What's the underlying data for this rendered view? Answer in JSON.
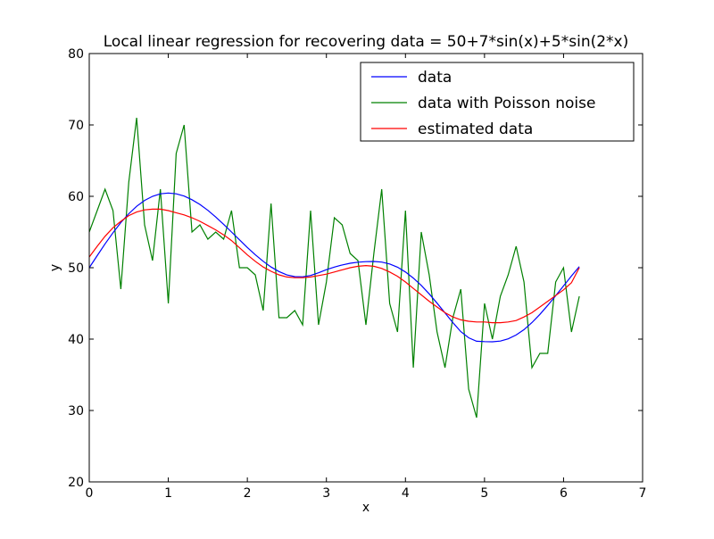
{
  "chart_data": {
    "type": "line",
    "title": "Local linear regression for recovering data = 50+7*sin(x)+5*sin(2*x)",
    "xlabel": "x",
    "ylabel": "y",
    "xlim": [
      0,
      7
    ],
    "ylim": [
      20,
      80
    ],
    "xticks": [
      "0",
      "1",
      "2",
      "3",
      "4",
      "5",
      "6",
      "7"
    ],
    "yticks": [
      "20",
      "30",
      "40",
      "50",
      "60",
      "70",
      "80"
    ],
    "grid": false,
    "legend_position": "upper-right",
    "x": [
      0.0,
      0.1,
      0.2,
      0.3,
      0.4,
      0.5,
      0.6,
      0.7,
      0.8,
      0.9,
      1.0,
      1.1,
      1.2,
      1.3,
      1.4,
      1.5,
      1.6,
      1.7,
      1.8,
      1.9,
      2.0,
      2.1,
      2.2,
      2.3,
      2.4,
      2.5,
      2.6,
      2.7,
      2.8,
      2.9,
      3.0,
      3.1,
      3.2,
      3.3,
      3.4,
      3.5,
      3.6,
      3.7,
      3.8,
      3.9,
      4.0,
      4.1,
      4.2,
      4.3,
      4.4,
      4.5,
      4.6,
      4.7,
      4.8,
      4.9,
      5.0,
      5.1,
      5.2,
      5.3,
      5.4,
      5.5,
      5.6,
      5.7,
      5.8,
      5.9,
      6.0,
      6.1,
      6.2
    ],
    "series": [
      {
        "name": "data",
        "color": "#0000ff",
        "values": [
          50.0,
          51.69,
          53.34,
          54.9,
          56.33,
          57.56,
          58.6,
          59.43,
          60.0,
          60.35,
          60.46,
          60.35,
          60.04,
          59.53,
          58.86,
          58.04,
          57.1,
          56.08,
          55.0,
          53.91,
          52.84,
          51.82,
          50.9,
          50.1,
          49.46,
          48.99,
          48.75,
          48.72,
          48.91,
          49.29,
          49.73,
          50.09,
          50.39,
          50.62,
          50.77,
          50.85,
          50.88,
          50.79,
          50.52,
          50.07,
          49.4,
          48.55,
          47.52,
          46.34,
          45.04,
          43.68,
          42.31,
          41.05,
          40.19,
          39.7,
          39.65,
          39.62,
          39.73,
          40.04,
          40.57,
          41.33,
          42.31,
          43.46,
          44.73,
          46.08,
          47.45,
          48.84,
          50.16
        ]
      },
      {
        "name": "data with Poisson noise",
        "color": "#008000",
        "values": [
          55,
          58,
          61,
          58,
          47,
          62,
          71,
          56,
          51,
          61,
          45,
          66,
          70,
          55,
          56,
          54,
          55,
          54,
          58,
          50,
          50,
          49,
          44,
          59,
          43,
          43,
          44,
          42,
          58,
          42,
          48,
          57,
          56,
          52,
          51,
          42,
          52,
          61,
          45,
          41,
          58,
          36,
          55,
          49,
          41,
          36,
          43,
          47,
          33,
          29,
          45,
          40,
          46,
          49,
          53,
          48,
          36,
          38,
          38,
          48,
          50,
          41,
          46
        ]
      },
      {
        "name": "estimated data",
        "color": "#ff0000",
        "values": [
          51.5,
          53.0,
          54.4,
          55.6,
          56.5,
          57.3,
          57.8,
          58.1,
          58.2,
          58.2,
          58.0,
          57.7,
          57.4,
          57.0,
          56.5,
          55.9,
          55.3,
          54.6,
          53.8,
          52.8,
          51.8,
          50.9,
          50.1,
          49.5,
          49.0,
          48.7,
          48.6,
          48.6,
          48.7,
          48.9,
          49.1,
          49.4,
          49.7,
          50.0,
          50.2,
          50.3,
          50.2,
          49.9,
          49.4,
          48.8,
          48.0,
          47.1,
          46.2,
          45.3,
          44.5,
          43.7,
          43.1,
          42.7,
          42.5,
          42.4,
          42.4,
          42.3,
          42.3,
          42.4,
          42.6,
          43.1,
          43.7,
          44.5,
          45.3,
          46.1,
          46.9,
          47.9,
          50.0
        ]
      }
    ]
  }
}
